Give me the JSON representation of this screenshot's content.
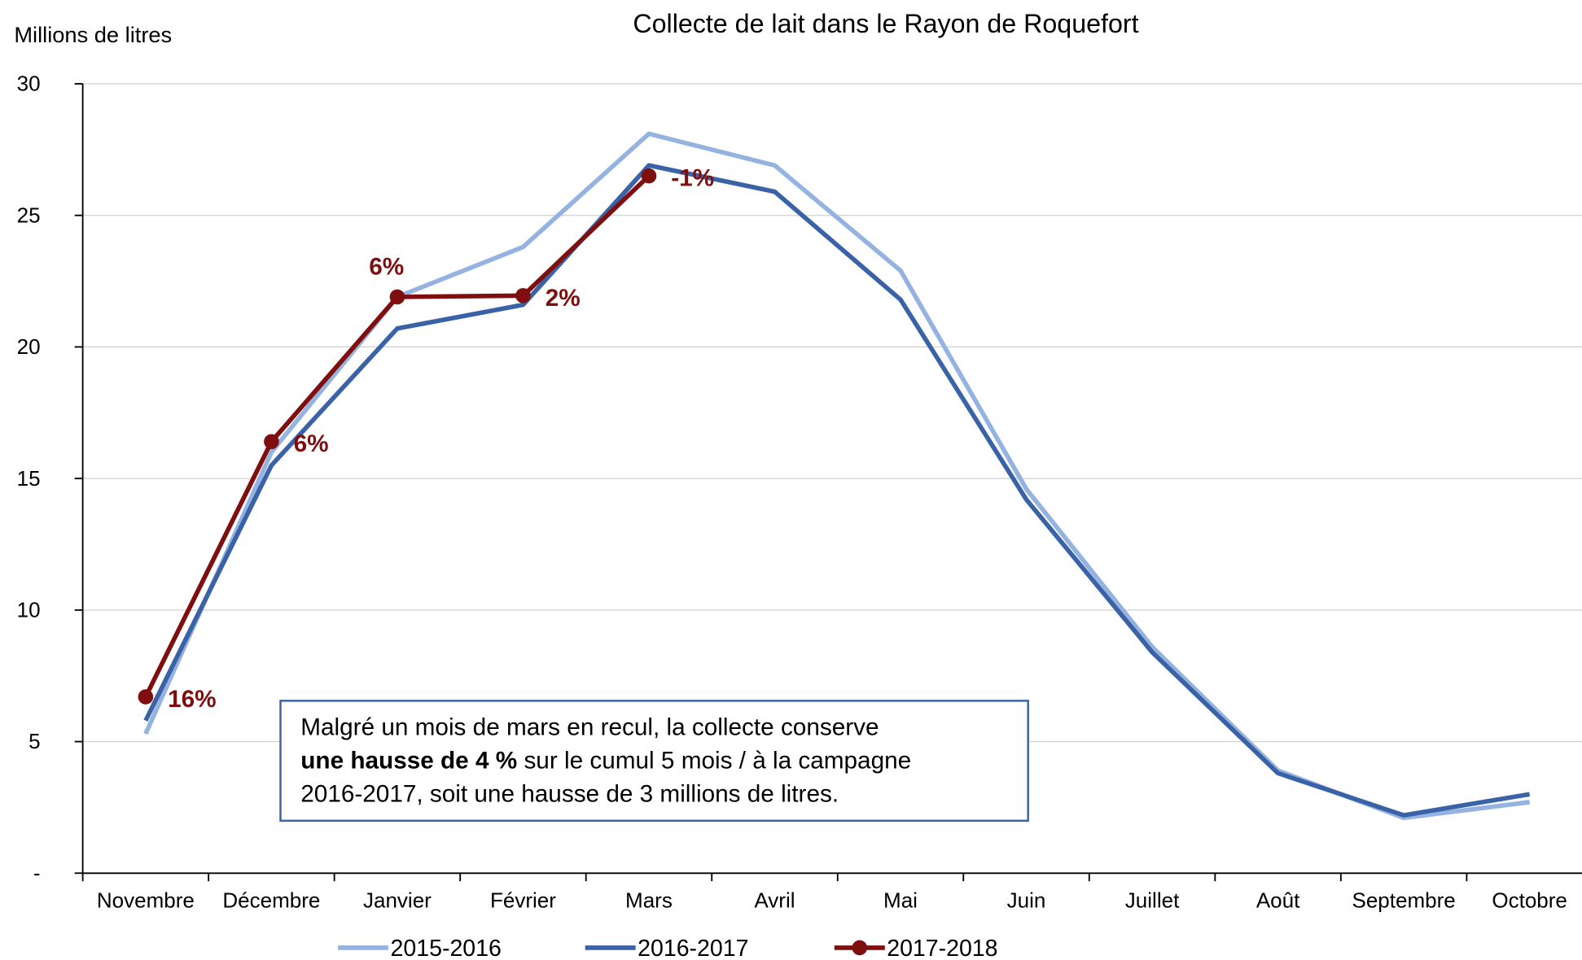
{
  "chart_data": {
    "type": "line",
    "title": "Collecte de lait dans le Rayon de Roquefort",
    "y_label": "Millions de litres",
    "categories": [
      "Novembre",
      "Décembre",
      "Janvier",
      "Février",
      "Mars",
      "Avril",
      "Mai",
      "Juin",
      "Juillet",
      "Août",
      "Septembre",
      "Octobre"
    ],
    "series": [
      {
        "name": "2015-2016",
        "color": "#95b3e0",
        "values": [
          5.3,
          16.0,
          21.9,
          23.8,
          28.1,
          26.9,
          22.9,
          14.6,
          8.6,
          3.9,
          2.1,
          2.7
        ]
      },
      {
        "name": "2016-2017",
        "color": "#3a62a7",
        "values": [
          5.8,
          15.5,
          20.7,
          21.6,
          26.9,
          25.9,
          21.8,
          14.2,
          8.4,
          3.8,
          2.2,
          3.0
        ]
      },
      {
        "name": "2017-2018",
        "color": "#7f0f0f",
        "markers": true,
        "values": [
          6.7,
          16.4,
          21.9,
          21.95,
          26.5,
          null,
          null,
          null,
          null,
          null,
          null,
          null
        ]
      }
    ],
    "annotations": [
      "16%",
      "6%",
      "6%",
      "2%",
      "-1%"
    ],
    "ylim": [
      0,
      30
    ],
    "yticks": [
      {
        "value": 0,
        "label": "-"
      },
      5,
      10,
      15,
      20,
      25,
      30
    ],
    "grid": true,
    "legend": "bottom",
    "note": {
      "line1": "Malgré un mois de mars en recul, la collecte conserve",
      "bold": "une hausse de 4 %",
      "line2": " sur le cumul 5 mois / à la campagne",
      "line3": "2016-2017, soit une hausse de 3 millions de litres."
    }
  }
}
